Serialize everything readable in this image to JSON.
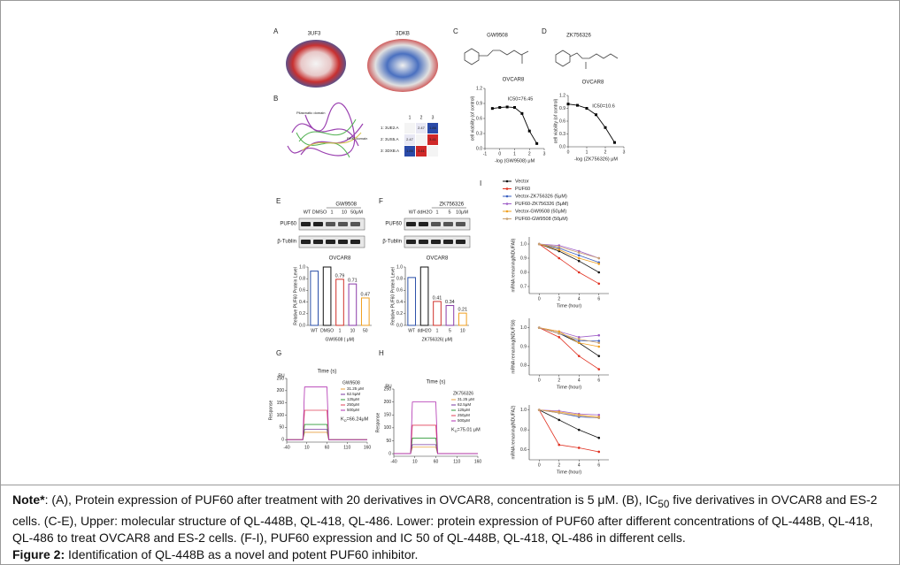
{
  "figure": {
    "A": {
      "letter": "A",
      "structures": [
        "3UF3",
        "3DKB"
      ]
    },
    "B": {
      "letter": "B",
      "domains": [
        "Pilasmatic domain",
        "RRM domain"
      ],
      "heatmap": {
        "columns": [
          "1",
          "2",
          "3"
        ],
        "rows": [
          "1: 3UE2.A",
          "2: 3US5.A",
          "3: 3DXB.A"
        ],
        "values": [
          [
            null,
            2.47,
            1.86
          ],
          [
            2.47,
            null,
            3.41
          ],
          [
            1.86,
            3.41,
            null
          ]
        ]
      }
    },
    "C": {
      "letter": "C",
      "compound": "GW9508",
      "chart": {
        "type": "line",
        "title": "OVCAR8",
        "annotation": "IC50=76.45",
        "ylabel": "cell viability (of control)",
        "xlabel": "-log (GW9508) μM",
        "x": [
          -0.5,
          0,
          0.5,
          1,
          1.5,
          2,
          2.5
        ],
        "values": [
          0.8,
          0.82,
          0.83,
          0.82,
          0.7,
          0.35,
          0.1
        ],
        "color": "#000000",
        "xlim": [
          -1,
          3
        ],
        "xticks": [
          -1,
          0,
          1,
          2,
          3
        ],
        "ylim": [
          0,
          1.2
        ],
        "yticks": [
          {
            "value": 0,
            "label": "0.0"
          },
          {
            "value": 0.3,
            "label": "0.3"
          },
          {
            "value": 0.6,
            "label": "0.6"
          },
          {
            "value": 0.9,
            "label": "0.9"
          },
          {
            "value": 1.2,
            "label": "1.2"
          }
        ]
      }
    },
    "D": {
      "letter": "D",
      "compound": "ZK756326",
      "chart": {
        "type": "line",
        "title": "OVCAR8",
        "annotation": "IC50=10.6",
        "ylabel": "cell viability (of control)",
        "xlabel": "-log (ZK756326) μM",
        "x": [
          0,
          0.5,
          1,
          1.5,
          2,
          2.5
        ],
        "values": [
          1.0,
          0.97,
          0.9,
          0.75,
          0.45,
          0.1
        ],
        "color": "#000000",
        "xlim": [
          0,
          3
        ],
        "xticks": [
          0,
          1,
          2,
          3
        ],
        "ylim": [
          0,
          1.2
        ],
        "yticks": [
          {
            "value": 0,
            "label": "0.0"
          },
          {
            "value": 0.3,
            "label": "0.3"
          },
          {
            "value": 0.6,
            "label": "0.6"
          },
          {
            "value": 0.9,
            "label": "0.9"
          },
          {
            "value": 1.2,
            "label": "1.2"
          }
        ]
      }
    },
    "E": {
      "letter": "E",
      "blot": {
        "treatment": "GW9508",
        "lanes": [
          "WT",
          "DMSO",
          "1",
          "10",
          "50μM"
        ],
        "rows": [
          "PUF60",
          "β-Tublin"
        ]
      },
      "chart": {
        "type": "bar",
        "title": "OVCAR8",
        "ylabel": "Relative PUF60  Protein Level",
        "xlabel": "GW9508 ( μM)",
        "categories": [
          "WT",
          "DMSO",
          "1",
          "10",
          "50"
        ],
        "values": [
          0.93,
          1.0,
          0.79,
          0.71,
          0.47
        ],
        "colors": [
          "#2b4fa8",
          "#111111",
          "#d0302a",
          "#8a3aa8",
          "#f0a020"
        ],
        "ylim": [
          0,
          1.0
        ],
        "yticks": [
          {
            "value": 0,
            "label": "0.0"
          },
          {
            "value": 0.2,
            "label": "0.2"
          },
          {
            "value": 0.4,
            "label": "0.4"
          },
          {
            "value": 0.6,
            "label": "0.6"
          },
          {
            "value": 0.8,
            "label": "0.8"
          },
          {
            "value": 1.0,
            "label": "1.0"
          }
        ]
      }
    },
    "F": {
      "letter": "F",
      "blot": {
        "treatment": "ZK756326",
        "lanes": [
          "WT",
          "ddH2O",
          "1",
          "5",
          "10μM"
        ],
        "rows": [
          "PUF60",
          "β-Tublin"
        ]
      },
      "chart": {
        "type": "bar",
        "title": "OVCAR8",
        "ylabel": "Relative PUF60  Protein Level",
        "xlabel": "ZK756326( μM)",
        "categories": [
          "WT",
          "ddH2O",
          "1",
          "5",
          "10"
        ],
        "values": [
          0.82,
          1.0,
          0.41,
          0.34,
          0.21
        ],
        "colors": [
          "#2b4fa8",
          "#111111",
          "#d0302a",
          "#8a3aa8",
          "#f0a020"
        ],
        "ylim": [
          0,
          1.0
        ],
        "yticks": [
          {
            "value": 0,
            "label": "0.0"
          },
          {
            "value": 0.2,
            "label": "0.2"
          },
          {
            "value": 0.4,
            "label": "0.4"
          },
          {
            "value": 0.6,
            "label": "0.6"
          },
          {
            "value": 0.8,
            "label": "0.8"
          },
          {
            "value": 1.0,
            "label": "1.0"
          }
        ]
      }
    },
    "G": {
      "letter": "G",
      "chart": {
        "type": "sensorgram",
        "title": "Time (s)",
        "unit": "RU",
        "ylabel": "Response",
        "legend_title": "GW9508",
        "annotation": {
          "symbol": "K",
          "subscript": "D",
          "text": "=66.24μM"
        },
        "xlim": [
          -40,
          160
        ],
        "xticks": [
          -40,
          10,
          60,
          110,
          160
        ],
        "ylim": [
          -10,
          250
        ],
        "yticks": [
          0,
          50,
          100,
          150,
          200,
          250
        ],
        "series": [
          {
            "name": "31.25 μM",
            "color": "#e8a040",
            "values": [
              30
            ]
          },
          {
            "name": "62.5μM",
            "color": "#7a3aa0",
            "values": [
              42
            ]
          },
          {
            "name": "125μM",
            "color": "#2f9a3a",
            "values": [
              62
            ]
          },
          {
            "name": "250μM",
            "color": "#e0405a",
            "values": [
              120
            ]
          },
          {
            "name": "500μM",
            "color": "#b030b0",
            "values": [
              215
            ]
          }
        ]
      }
    },
    "H": {
      "letter": "H",
      "chart": {
        "type": "sensorgram",
        "title": "Time (s)",
        "unit": "RU",
        "ylabel": "Response",
        "legend_title": "ZK756326",
        "annotation": {
          "symbol": "K",
          "subscript": "D",
          "text": "=75.01 μM"
        },
        "xlim": [
          -40,
          160
        ],
        "xticks": [
          -40,
          10,
          60,
          110,
          160
        ],
        "ylim": [
          -10,
          250
        ],
        "yticks": [
          0,
          50,
          100,
          150,
          200,
          250
        ],
        "series": [
          {
            "name": "31.25 μM",
            "color": "#e8a040",
            "values": [
              25
            ]
          },
          {
            "name": "62.5μM",
            "color": "#7a3aa0",
            "values": [
              35
            ]
          },
          {
            "name": "125μM",
            "color": "#2f9a3a",
            "values": [
              60
            ]
          },
          {
            "name": "250μM",
            "color": "#e0405a",
            "values": [
              110
            ]
          },
          {
            "name": "500μM",
            "color": "#b030b0",
            "values": [
              200
            ]
          }
        ]
      }
    },
    "I": {
      "letter": "I",
      "xlabel": "Time (hour)",
      "x": [
        0,
        2,
        4,
        6
      ],
      "xlim": [
        -1,
        7
      ],
      "xticks": [
        0,
        2,
        4,
        6
      ],
      "series": [
        {
          "name": "Vector",
          "color": "#111111"
        },
        {
          "name": "PUF60",
          "color": "#e03020"
        },
        {
          "name": "Vector-ZK756326 (5μM)",
          "color": "#3a5fc0"
        },
        {
          "name": "PUF60-ZK756326 (5μM)",
          "color": "#a060c8"
        },
        {
          "name": "Vector-GW9508 (50μM)",
          "color": "#f0a020"
        },
        {
          "name": "PUF60-GW9508 (50μM)",
          "color": "#c8a070"
        }
      ],
      "charts": [
        {
          "ylabel": "mRNA remaining(NDUFA8)",
          "ylim": [
            0.65,
            1.05
          ],
          "yticks": [
            {
              "value": 0.7,
              "label": "0.7"
            },
            {
              "value": 0.8,
              "label": "0.8"
            },
            {
              "value": 0.9,
              "label": "0.9"
            },
            {
              "value": 1.0,
              "label": "1.0"
            }
          ],
          "values": [
            [
              1,
              0.95,
              0.88,
              0.8
            ],
            [
              1,
              0.9,
              0.8,
              0.72
            ],
            [
              1,
              0.97,
              0.92,
              0.87
            ],
            [
              1,
              0.99,
              0.95,
              0.9
            ],
            [
              1,
              0.96,
              0.9,
              0.86
            ],
            [
              1,
              0.98,
              0.94,
              0.9
            ]
          ]
        },
        {
          "ylabel": "mRNA remaining(NDUFS8)",
          "ylim": [
            0.75,
            1.05
          ],
          "yticks": [
            {
              "value": 0.8,
              "label": "0.8"
            },
            {
              "value": 0.9,
              "label": "0.9"
            },
            {
              "value": 1.0,
              "label": "1.0"
            }
          ],
          "values": [
            [
              1,
              0.97,
              0.92,
              0.85
            ],
            [
              1,
              0.95,
              0.85,
              0.78
            ],
            [
              1,
              0.97,
              0.93,
              0.93
            ],
            [
              1,
              0.98,
              0.95,
              0.96
            ],
            [
              1,
              0.98,
              0.92,
              0.9
            ],
            [
              1,
              0.97,
              0.94,
              0.92
            ]
          ]
        },
        {
          "ylabel": "mRNA remaining(NDUFA2)",
          "ylim": [
            0.5,
            1.05
          ],
          "yticks": [
            {
              "value": 0.6,
              "label": "0.6"
            },
            {
              "value": 0.8,
              "label": "0.8"
            },
            {
              "value": 1.0,
              "label": "1.0"
            }
          ],
          "values": [
            [
              1,
              0.9,
              0.8,
              0.72
            ],
            [
              1,
              0.65,
              0.62,
              0.58
            ],
            [
              1,
              0.97,
              0.93,
              0.92
            ],
            [
              1,
              0.99,
              0.96,
              0.95
            ],
            [
              1,
              0.98,
              0.95,
              0.93
            ],
            [
              1,
              0.97,
              0.94,
              0.92
            ]
          ]
        }
      ]
    }
  },
  "caption": {
    "note_label": "Note*",
    "note_text_1": ": (A), Protein expression of PUF60 after treatment with 20 derivatives in OVCAR8, concentration is 5 μM. (B), IC",
    "note_sub": "50",
    "note_text_2": " five derivatives in OVCAR8 and ES-2 cells. (C-E), Upper: molecular structure of QL-448B, QL-418, QL-486. Lower: protein expression of PUF60 after different concentrations of QL-448B, QL-418, QL-486 to treat OVCAR8 and ES-2 cells. (F-I), PUF60 expression and IC 50 of QL-448B, QL-418, QL-486 in different cells.",
    "figure_label": "Figure 2:",
    "figure_title": " Identification of QL-448B as a novel and potent PUF60 inhibitor."
  }
}
